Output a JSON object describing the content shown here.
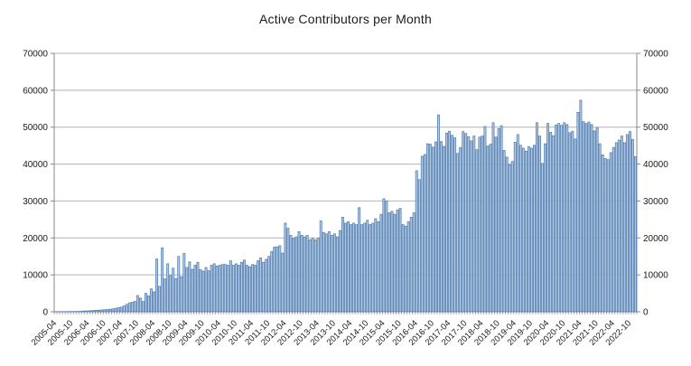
{
  "chart_data": {
    "type": "bar",
    "title": "Active Contributors per Month",
    "xlabel": "",
    "ylabel": "",
    "ylim": [
      0,
      70000
    ],
    "ytick_interval": 10000,
    "y_axis_ticks": [
      0,
      10000,
      20000,
      30000,
      40000,
      50000,
      60000,
      70000
    ],
    "dual_y_axis": true,
    "grid": "horizontal",
    "legend": "none",
    "x_tick_labels_shown": [
      "2005-04",
      "2005-10",
      "2006-04",
      "2006-10",
      "2007-04",
      "2007-10",
      "2008-04",
      "2008-10",
      "2009-04",
      "2009-10",
      "2010-04",
      "2010-10",
      "2011-04",
      "2011-10",
      "2012-04",
      "2012-10",
      "2013-04",
      "2013-10",
      "2014-04",
      "2014-10",
      "2015-04",
      "2015-10",
      "2016-04",
      "2016-10",
      "2017-04",
      "2017-10",
      "2018-04",
      "2018-10",
      "2019-04",
      "2019-10",
      "2020-04",
      "2020-10",
      "2021-04",
      "2021-10",
      "2022-04",
      "2022-10"
    ],
    "categories": [
      "2005-04",
      "2005-05",
      "2005-06",
      "2005-07",
      "2005-08",
      "2005-09",
      "2005-10",
      "2005-11",
      "2005-12",
      "2006-01",
      "2006-02",
      "2006-03",
      "2006-04",
      "2006-05",
      "2006-06",
      "2006-07",
      "2006-08",
      "2006-09",
      "2006-10",
      "2006-11",
      "2006-12",
      "2007-01",
      "2007-02",
      "2007-03",
      "2007-04",
      "2007-05",
      "2007-06",
      "2007-07",
      "2007-08",
      "2007-09",
      "2007-10",
      "2007-11",
      "2007-12",
      "2008-01",
      "2008-02",
      "2008-03",
      "2008-04",
      "2008-05",
      "2008-06",
      "2008-07",
      "2008-08",
      "2008-09",
      "2008-10",
      "2008-11",
      "2008-12",
      "2009-01",
      "2009-02",
      "2009-03",
      "2009-04",
      "2009-05",
      "2009-06",
      "2009-07",
      "2009-08",
      "2009-09",
      "2009-10",
      "2009-11",
      "2009-12",
      "2010-01",
      "2010-02",
      "2010-03",
      "2010-04",
      "2010-05",
      "2010-06",
      "2010-07",
      "2010-08",
      "2010-09",
      "2010-10",
      "2010-11",
      "2010-12",
      "2011-01",
      "2011-02",
      "2011-03",
      "2011-04",
      "2011-05",
      "2011-06",
      "2011-07",
      "2011-08",
      "2011-09",
      "2011-10",
      "2011-11",
      "2011-12",
      "2012-01",
      "2012-02",
      "2012-03",
      "2012-04",
      "2012-05",
      "2012-06",
      "2012-07",
      "2012-08",
      "2012-09",
      "2012-10",
      "2012-11",
      "2012-12",
      "2013-01",
      "2013-02",
      "2013-03",
      "2013-04",
      "2013-05",
      "2013-06",
      "2013-07",
      "2013-08",
      "2013-09",
      "2013-10",
      "2013-11",
      "2013-12",
      "2014-01",
      "2014-02",
      "2014-03",
      "2014-04",
      "2014-05",
      "2014-06",
      "2014-07",
      "2014-08",
      "2014-09",
      "2014-10",
      "2014-11",
      "2014-12",
      "2015-01",
      "2015-02",
      "2015-03",
      "2015-04",
      "2015-05",
      "2015-06",
      "2015-07",
      "2015-08",
      "2015-09",
      "2015-10",
      "2015-11",
      "2015-12",
      "2016-01",
      "2016-02",
      "2016-03",
      "2016-04",
      "2016-05",
      "2016-06",
      "2016-07",
      "2016-08",
      "2016-09",
      "2016-10",
      "2016-11",
      "2016-12",
      "2017-01",
      "2017-02",
      "2017-03",
      "2017-04",
      "2017-05",
      "2017-06",
      "2017-07",
      "2017-08",
      "2017-09",
      "2017-10",
      "2017-11",
      "2017-12",
      "2018-01",
      "2018-02",
      "2018-03",
      "2018-04",
      "2018-05",
      "2018-06",
      "2018-07",
      "2018-08",
      "2018-09",
      "2018-10",
      "2018-11",
      "2018-12",
      "2019-01",
      "2019-02",
      "2019-03",
      "2019-04",
      "2019-05",
      "2019-06",
      "2019-07",
      "2019-08",
      "2019-09",
      "2019-10",
      "2019-11",
      "2019-12",
      "2020-01",
      "2020-02",
      "2020-03",
      "2020-04",
      "2020-05",
      "2020-06",
      "2020-07",
      "2020-08",
      "2020-09",
      "2020-10",
      "2020-11",
      "2020-12",
      "2021-01",
      "2021-02",
      "2021-03",
      "2021-04",
      "2021-05",
      "2021-06",
      "2021-07",
      "2021-08",
      "2021-09",
      "2021-10",
      "2021-11",
      "2021-12",
      "2022-01",
      "2022-02",
      "2022-03",
      "2022-04",
      "2022-05",
      "2022-06",
      "2022-07",
      "2022-08",
      "2022-09",
      "2022-10",
      "2022-11",
      "2022-12"
    ],
    "values": [
      40,
      45,
      50,
      55,
      60,
      70,
      80,
      90,
      100,
      110,
      200,
      230,
      260,
      300,
      350,
      400,
      450,
      500,
      560,
      620,
      700,
      800,
      950,
      1100,
      1250,
      1600,
      2000,
      2400,
      2600,
      2800,
      4400,
      3700,
      2800,
      5000,
      4300,
      6200,
      5400,
      14300,
      6900,
      17300,
      8900,
      13000,
      9800,
      11800,
      9000,
      15000,
      9500,
      15800,
      12000,
      13500,
      11500,
      12600,
      13400,
      11400,
      11000,
      12000,
      11100,
      12600,
      13000,
      12400,
      12600,
      12800,
      12800,
      12600,
      13800,
      12600,
      13000,
      12600,
      13400,
      14000,
      12600,
      12200,
      12800,
      12600,
      13800,
      14600,
      13400,
      14200,
      15000,
      16300,
      17500,
      17600,
      17900,
      15900,
      24000,
      22600,
      20700,
      19900,
      20300,
      21700,
      20700,
      20300,
      20700,
      19500,
      19900,
      19500,
      19900,
      24600,
      21500,
      21100,
      21700,
      20700,
      21100,
      20300,
      22000,
      25600,
      24000,
      24400,
      23600,
      24000,
      23600,
      28200,
      23600,
      24000,
      24800,
      23600,
      24000,
      25200,
      24400,
      26400,
      30600,
      30000,
      26800,
      27200,
      26400,
      27600,
      28000,
      23600,
      23200,
      24400,
      25600,
      26800,
      38200,
      35800,
      42100,
      42600,
      45500,
      45400,
      44600,
      46000,
      53300,
      46100,
      44800,
      48400,
      48900,
      47800,
      47100,
      42900,
      44500,
      48800,
      48300,
      47400,
      46300,
      47600,
      43900,
      47300,
      47600,
      50200,
      44900,
      45400,
      51200,
      47300,
      49600,
      50400,
      43700,
      41900,
      39800,
      40700,
      45900,
      48000,
      45100,
      44300,
      43500,
      44700,
      44300,
      45100,
      51200,
      47600,
      40200,
      45500,
      51000,
      48600,
      47700,
      50600,
      51000,
      50500,
      51200,
      50700,
      48500,
      48900,
      46800,
      54000,
      57300,
      51500,
      51000,
      51400,
      50700,
      49000,
      49800,
      45500,
      42500,
      41500,
      41200,
      43100,
      44500,
      45800,
      46500,
      47600,
      45800,
      48000,
      48800,
      46700,
      42000
    ],
    "colors": {
      "bar_fill": "#adc9e5",
      "bar_stroke": "#4e76a7",
      "gridline": "#b3b3b3",
      "axis": "#888888",
      "tick": "#999999",
      "text": "#1a1a1a",
      "background": "#ffffff"
    }
  }
}
